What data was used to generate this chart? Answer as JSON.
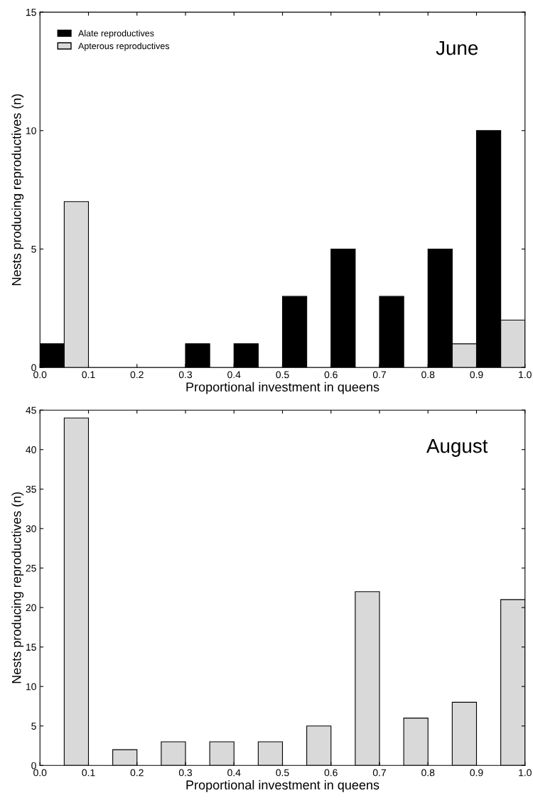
{
  "chart_data": [
    {
      "type": "bar",
      "title": "June",
      "xlabel": "Proportional investment in queens",
      "ylabel": "Nests producing reproductives (n)",
      "xlim": [
        0,
        1
      ],
      "ylim": [
        0,
        15
      ],
      "xticks": [
        {
          "value": 0,
          "label": "0.0"
        },
        {
          "value": 0.1,
          "label": "0.1"
        },
        {
          "value": 0.2,
          "label": "0.2"
        },
        {
          "value": 0.3,
          "label": "0.3"
        },
        {
          "value": 0.4,
          "label": "0.4"
        },
        {
          "value": 0.5,
          "label": "0.5"
        },
        {
          "value": 0.6,
          "label": "0.6"
        },
        {
          "value": 0.7,
          "label": "0.7"
        },
        {
          "value": 0.8,
          "label": "0.8"
        },
        {
          "value": 0.9,
          "label": "0.9"
        },
        {
          "value": 1,
          "label": "1.0"
        }
      ],
      "yticks": [
        0,
        5,
        10,
        15
      ],
      "grid": false,
      "legend": "top left",
      "series": [
        {
          "name": "Alate reproductives",
          "color": "#000000",
          "x": [
            0.025,
            0.125,
            0.225,
            0.325,
            0.425,
            0.525,
            0.625,
            0.725,
            0.825,
            0.925
          ],
          "values": [
            1,
            0,
            0,
            1,
            1,
            3,
            5,
            3,
            5,
            10
          ]
        },
        {
          "name": "Apterous reproductives",
          "color": "#d9d9d9",
          "x": [
            0.075,
            0.175,
            0.275,
            0.375,
            0.475,
            0.575,
            0.675,
            0.775,
            0.875,
            0.975
          ],
          "values": [
            7,
            0,
            0,
            0,
            0,
            0,
            0,
            0,
            1,
            2
          ]
        }
      ]
    },
    {
      "type": "bar",
      "title": "August",
      "xlabel": "Proportional investment in queens",
      "ylabel": "Nests producing reproductives (n)",
      "xlim": [
        0,
        1
      ],
      "ylim": [
        0,
        45
      ],
      "xticks": [
        {
          "value": 0,
          "label": "0.0"
        },
        {
          "value": 0.1,
          "label": "0.1"
        },
        {
          "value": 0.2,
          "label": "0.2"
        },
        {
          "value": 0.3,
          "label": "0.3"
        },
        {
          "value": 0.4,
          "label": "0.4"
        },
        {
          "value": 0.5,
          "label": "0.5"
        },
        {
          "value": 0.6,
          "label": "0.6"
        },
        {
          "value": 0.7,
          "label": "0.7"
        },
        {
          "value": 0.8,
          "label": "0.8"
        },
        {
          "value": 0.9,
          "label": "0.9"
        },
        {
          "value": 1,
          "label": "1.0"
        }
      ],
      "yticks": [
        0,
        5,
        10,
        15,
        20,
        25,
        30,
        35,
        40,
        45
      ],
      "grid": false,
      "series": [
        {
          "color": "#d9d9d9",
          "x": [
            0.075,
            0.175,
            0.275,
            0.375,
            0.475,
            0.575,
            0.675,
            0.775,
            0.875,
            0.975
          ],
          "values": [
            44,
            2,
            3,
            3,
            3,
            5,
            22,
            6,
            8,
            21
          ]
        }
      ]
    }
  ]
}
